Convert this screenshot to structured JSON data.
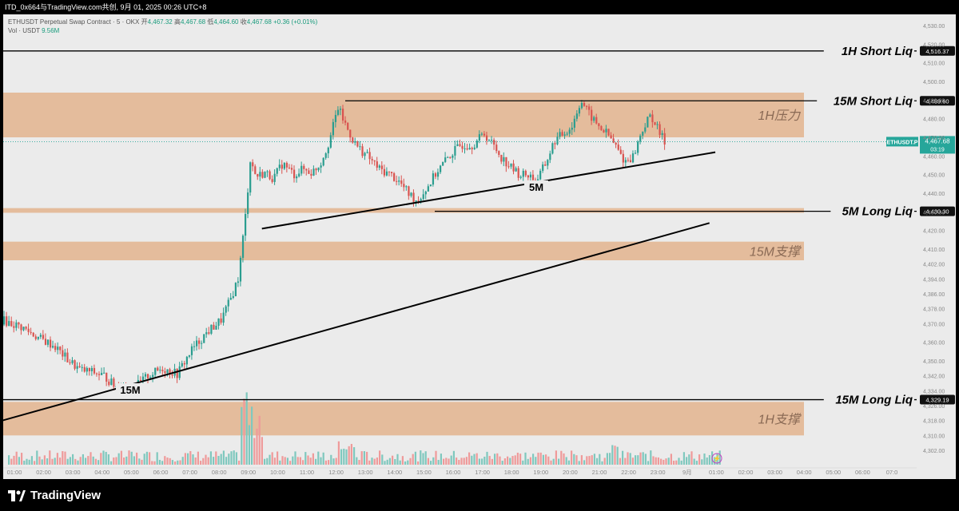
{
  "header": {
    "title": "ITD_0x664与TradingView.com共创, 9月 01, 2025 00:26 UTC+8"
  },
  "legend": {
    "symbol_line": "ETHUSDT Perpetual Swap Contract · 5 · OKX",
    "open_label": "开",
    "open": "4,467.32",
    "high_label": "高",
    "high": "4,467.68",
    "low_label": "低",
    "low": "4,464.60",
    "close_label": "收",
    "close": "4,467.68",
    "change": "+0.36 (+0.01%)",
    "vol_label": "Vol · USDT",
    "vol": "9.56M"
  },
  "footer": {
    "brand": "TradingView"
  },
  "colors": {
    "bg": "#ebebeb",
    "zone": "#e3b48e",
    "up": "#2a9d8f",
    "down": "#d9534f",
    "vol_up": "#7fc8be",
    "vol_down": "#ef9a9a",
    "line": "#000000",
    "price_tag": "#26a69a"
  },
  "chart_data": {
    "type": "candlestick",
    "symbol": "ETHUSDT.P",
    "timeframe": "5",
    "ylim": [
      4296,
      4536
    ],
    "y_ticks": [
      "4,530.00",
      "4,520.00",
      "4,510.00",
      "4,500.00",
      "4,490.00",
      "4,480.00",
      "4,470.00",
      "4,460.00",
      "4,450.00",
      "4,440.00",
      "4,430.00",
      "4,420.00",
      "4,410.00",
      "4,402.00",
      "4,394.00",
      "4,386.00",
      "4,378.00",
      "4,370.00",
      "4,360.00",
      "4,350.00",
      "4,342.00",
      "4,334.00",
      "4,326.00",
      "4,318.00",
      "4,310.00",
      "4,302.00"
    ],
    "y_tick_values": [
      4530,
      4520,
      4510,
      4500,
      4490,
      4480,
      4470,
      4460,
      4450,
      4440,
      4430,
      4420,
      4410,
      4402,
      4394,
      4386,
      4378,
      4370,
      4360,
      4350,
      4342,
      4334,
      4326,
      4318,
      4310,
      4302
    ],
    "x_ticks": [
      "01:00",
      "02:00",
      "03:00",
      "04:00",
      "05:00",
      "06:00",
      "07:00",
      "08:00",
      "09:00",
      "10:00",
      "11:00",
      "12:00",
      "13:00",
      "14:00",
      "15:00",
      "16:00",
      "17:00",
      "18:00",
      "19:00",
      "20:00",
      "21:00",
      "22:00",
      "23:00",
      "9月",
      "01:00",
      "02:00",
      "03:00",
      "04:00",
      "05:00",
      "06:00",
      "07:0"
    ],
    "price_path": [
      [
        0.0,
        4372
      ],
      [
        0.7,
        4368
      ],
      [
        1.3,
        4362
      ],
      [
        1.8,
        4358
      ],
      [
        2.3,
        4350
      ],
      [
        2.7,
        4345
      ],
      [
        3.1,
        4344
      ],
      [
        3.5,
        4342
      ],
      [
        3.9,
        4336
      ],
      [
        4.1,
        4338
      ],
      [
        4.5,
        4335
      ],
      [
        5.0,
        4342
      ],
      [
        5.5,
        4346
      ],
      [
        6.0,
        4343
      ],
      [
        6.5,
        4356
      ],
      [
        7.0,
        4365
      ],
      [
        7.5,
        4372
      ],
      [
        7.8,
        4382
      ],
      [
        8.1,
        4395
      ],
      [
        8.35,
        4430
      ],
      [
        8.5,
        4458
      ],
      [
        8.7,
        4449
      ],
      [
        9.0,
        4451
      ],
      [
        9.3,
        4448
      ],
      [
        9.6,
        4456
      ],
      [
        10.0,
        4450
      ],
      [
        10.3,
        4453
      ],
      [
        10.6,
        4451
      ],
      [
        10.9,
        4456
      ],
      [
        11.2,
        4468
      ],
      [
        11.5,
        4486
      ],
      [
        11.8,
        4475
      ],
      [
        12.1,
        4466
      ],
      [
        12.5,
        4460
      ],
      [
        12.9,
        4453
      ],
      [
        13.3,
        4450
      ],
      [
        13.6,
        4446
      ],
      [
        13.9,
        4440
      ],
      [
        14.2,
        4436
      ],
      [
        14.5,
        4442
      ],
      [
        14.9,
        4452
      ],
      [
        15.3,
        4460
      ],
      [
        15.7,
        4466
      ],
      [
        16.1,
        4466
      ],
      [
        16.5,
        4472
      ],
      [
        16.8,
        4466
      ],
      [
        17.1,
        4459
      ],
      [
        17.4,
        4454
      ],
      [
        17.7,
        4450
      ],
      [
        18.0,
        4450
      ],
      [
        18.3,
        4447
      ],
      [
        18.6,
        4456
      ],
      [
        18.9,
        4468
      ],
      [
        19.2,
        4472
      ],
      [
        19.5,
        4476
      ],
      [
        19.8,
        4490
      ],
      [
        20.1,
        4482
      ],
      [
        20.4,
        4476
      ],
      [
        20.7,
        4472
      ],
      [
        21.0,
        4465
      ],
      [
        21.3,
        4457
      ],
      [
        21.6,
        4460
      ],
      [
        21.9,
        4474
      ],
      [
        22.2,
        4482
      ],
      [
        22.5,
        4472
      ],
      [
        22.7,
        4467
      ]
    ],
    "volume_note": "volume histogram along bottom",
    "levels": [
      {
        "label": "1H Short Liq",
        "price": 4516.37,
        "price_label": "4,516.37"
      },
      {
        "label": "15M Short Liq",
        "price": 4489.6,
        "price_label": "4,489.60"
      },
      {
        "label": "5M Long Liq",
        "price": 4430.3,
        "price_label": "4,430.30"
      },
      {
        "label": "15M Long Liq",
        "price": 4329.19,
        "price_label": "4,329.19"
      }
    ],
    "last_price": {
      "label": "ETHUSDT.P",
      "price": 4467.68,
      "price_label": "4,467.68",
      "countdown": "03:19"
    },
    "zones": [
      {
        "label": "1H压力",
        "from": 4470,
        "to": 4494
      },
      {
        "label": "",
        "from": 4429.5,
        "to": 4432
      },
      {
        "label": "15M支撑",
        "from": 4404,
        "to": 4414
      },
      {
        "label": "1H支撑",
        "from": 4310,
        "to": 4328
      }
    ],
    "trendlines": [
      {
        "label": "5M",
        "from": [
          8.9,
          4421
        ],
        "to": [
          24.4,
          4462
        ]
      },
      {
        "label": "15M",
        "from": [
          -0.2,
          4317
        ],
        "to": [
          24.2,
          4424
        ]
      }
    ]
  }
}
